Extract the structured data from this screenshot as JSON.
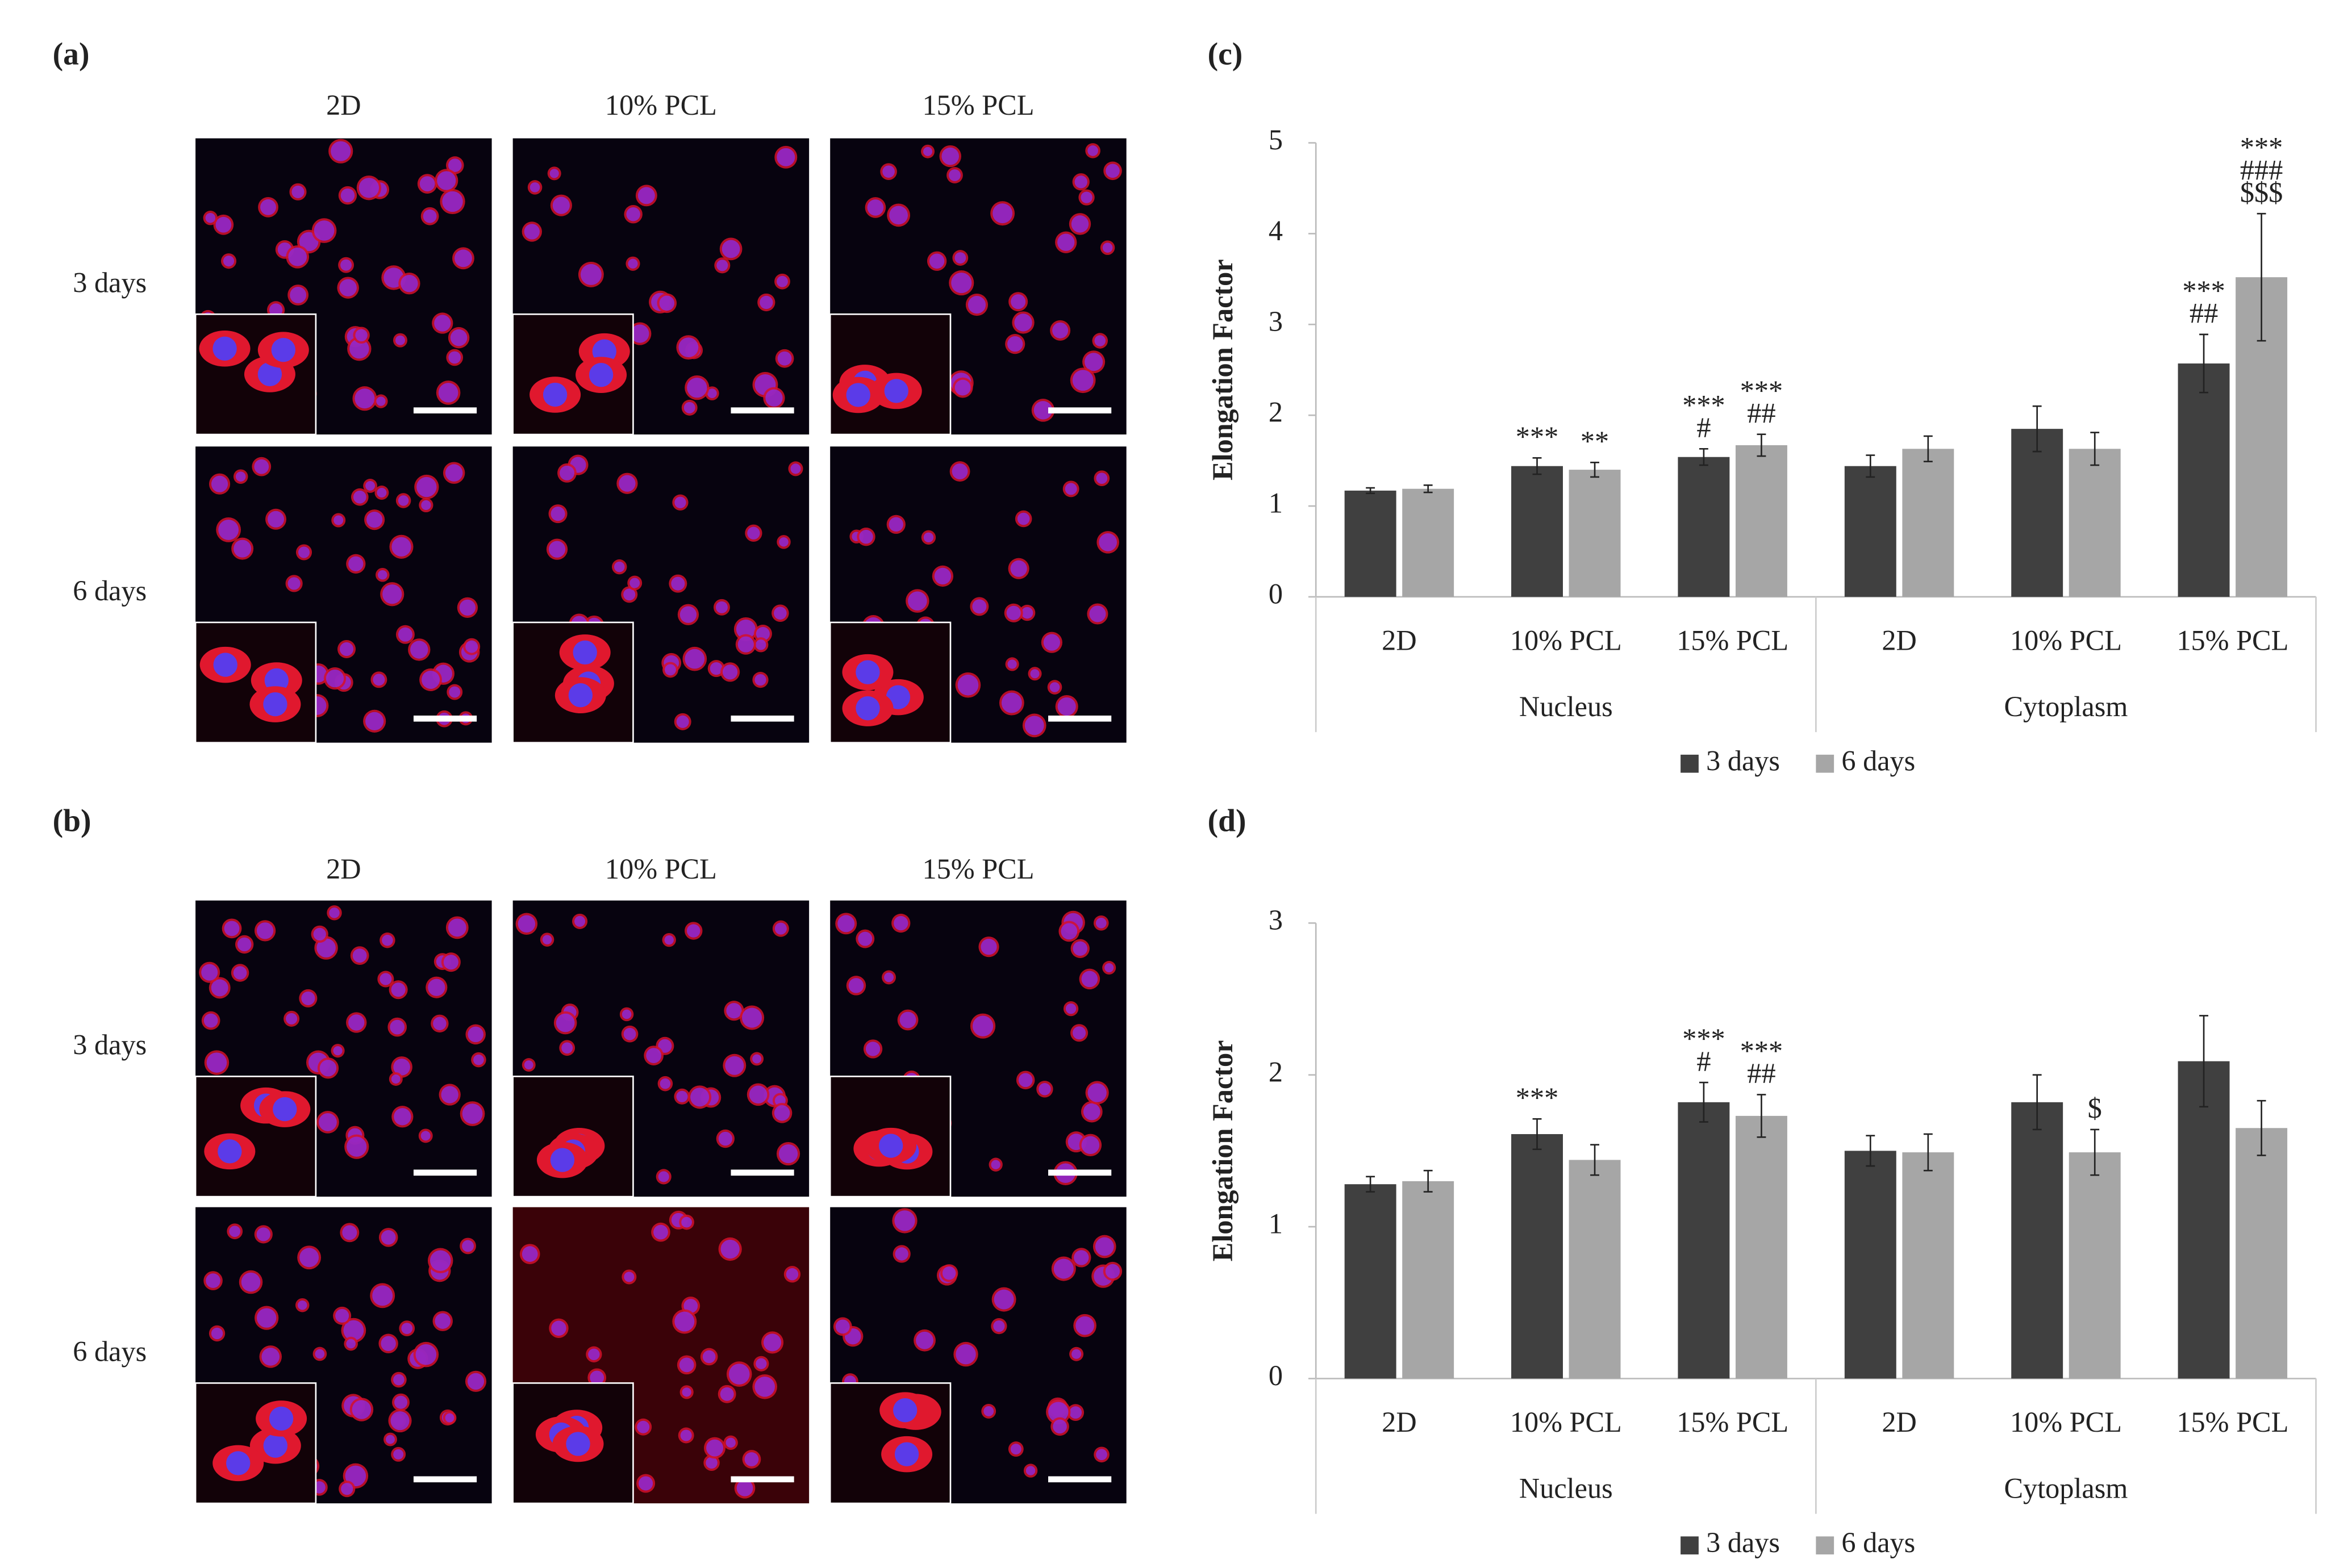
{
  "figure": {
    "panel_labels": [
      "(a)",
      "(b)",
      "(c)",
      "(d)"
    ],
    "micrographs": [
      {
        "columns": [
          "2D",
          "10% PCL",
          "15% PCL"
        ],
        "rows": [
          "3 days",
          "6 days"
        ]
      },
      {
        "columns": [
          "2D",
          "10% PCL",
          "15% PCL"
        ],
        "rows": [
          "3 days",
          "6 days"
        ]
      }
    ]
  },
  "chart_data": [
    {
      "type": "bar",
      "y_label": "Elongation Factor",
      "categories": [
        "2D",
        "10% PCL",
        "15% PCL",
        "2D",
        "10% PCL",
        "15% PCL"
      ],
      "groups": [
        "Nucleus",
        "Cytoplasm"
      ],
      "ylim": [
        0,
        5
      ],
      "yticks": [
        0,
        1,
        2,
        3,
        4,
        5
      ],
      "legend": "bottom",
      "series": [
        {
          "name": "3 days",
          "color": "#404040",
          "values": [
            1.17,
            1.44,
            1.54,
            1.44,
            1.85,
            2.57
          ],
          "errors": [
            0.03,
            0.09,
            0.09,
            0.12,
            0.25,
            0.32
          ],
          "markers": [
            null,
            [
              "***"
            ],
            [
              "***",
              "#"
            ],
            null,
            null,
            [
              "***",
              "##"
            ]
          ]
        },
        {
          "name": "6 days",
          "color": "#a6a6a6",
          "values": [
            1.19,
            1.4,
            1.67,
            1.63,
            1.63,
            3.52
          ],
          "errors": [
            0.04,
            0.08,
            0.12,
            0.14,
            0.18,
            0.7
          ],
          "markers": [
            null,
            [
              "**"
            ],
            [
              "***",
              "##"
            ],
            null,
            null,
            [
              "***",
              "###",
              "$$$"
            ]
          ]
        }
      ]
    },
    {
      "type": "bar",
      "y_label": "Elongation Factor",
      "categories": [
        "2D",
        "10% PCL",
        "15% PCL",
        "2D",
        "10% PCL",
        "15% PCL"
      ],
      "groups": [
        "Nucleus",
        "Cytoplasm"
      ],
      "ylim": [
        0,
        3
      ],
      "yticks": [
        0,
        1,
        2,
        3
      ],
      "legend": "bottom",
      "series": [
        {
          "name": "3 days",
          "color": "#404040",
          "values": [
            1.28,
            1.61,
            1.82,
            1.5,
            1.82,
            2.09
          ],
          "errors": [
            0.05,
            0.1,
            0.13,
            0.1,
            0.18,
            0.3
          ],
          "markers": [
            null,
            [
              "***"
            ],
            [
              "***",
              "#"
            ],
            null,
            null,
            null
          ]
        },
        {
          "name": "6 days",
          "color": "#a6a6a6",
          "values": [
            1.3,
            1.44,
            1.73,
            1.49,
            1.49,
            1.65
          ],
          "errors": [
            0.07,
            0.1,
            0.14,
            0.12,
            0.15,
            0.18
          ],
          "markers": [
            null,
            null,
            [
              "***",
              "##"
            ],
            null,
            [
              "$"
            ],
            null
          ]
        }
      ]
    }
  ]
}
